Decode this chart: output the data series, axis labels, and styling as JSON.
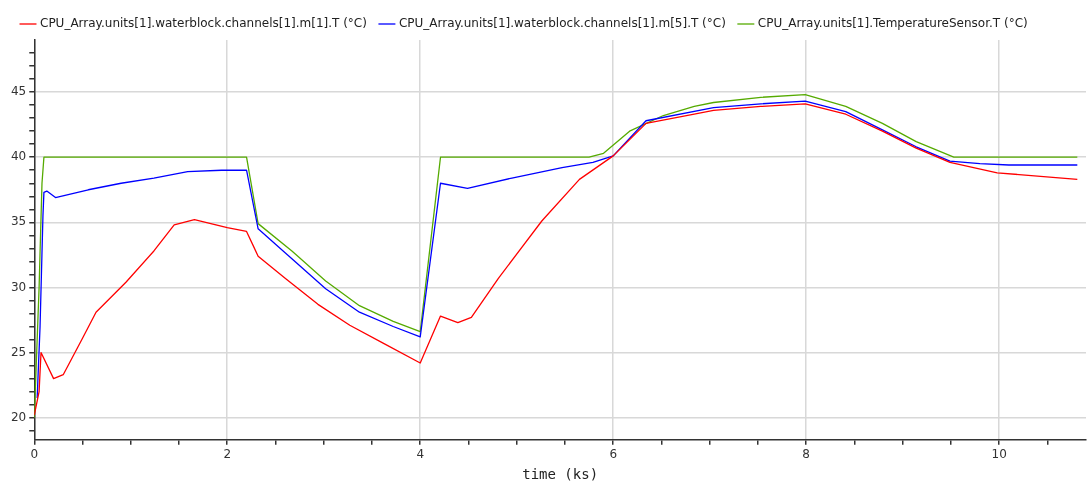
{
  "chart_data": {
    "type": "line",
    "xlabel": "time (ks)",
    "legend": "top left",
    "grid": true,
    "marker": "none",
    "line_style": "solid",
    "xlim": [
      0,
      10.9
    ],
    "ylim": [
      18.3,
      49
    ],
    "xticks": [
      0,
      {
        "value": 0.5,
        "label": null
      },
      {
        "value": 1,
        "label": null
      },
      {
        "value": 1.5,
        "label": null
      },
      2,
      {
        "value": 2.5,
        "label": null
      },
      {
        "value": 3,
        "label": null
      },
      {
        "value": 3.5,
        "label": null
      },
      4,
      {
        "value": 4.5,
        "label": null
      },
      {
        "value": 5,
        "label": null
      },
      {
        "value": 5.5,
        "label": null
      },
      6,
      {
        "value": 6.5,
        "label": null
      },
      {
        "value": 7,
        "label": null
      },
      {
        "value": 7.5,
        "label": null
      },
      8,
      {
        "value": 8.5,
        "label": null
      },
      {
        "value": 9,
        "label": null
      },
      {
        "value": 9.5,
        "label": null
      },
      10,
      {
        "value": 10.5,
        "label": null
      }
    ],
    "yticks": [
      {
        "value": 19,
        "label": null
      },
      20,
      {
        "value": 21,
        "label": null
      },
      {
        "value": 22,
        "label": null
      },
      {
        "value": 23,
        "label": null
      },
      {
        "value": 24,
        "label": null
      },
      25,
      {
        "value": 26,
        "label": null
      },
      {
        "value": 27,
        "label": null
      },
      {
        "value": 28,
        "label": null
      },
      {
        "value": 29,
        "label": null
      },
      30,
      {
        "value": 31,
        "label": null
      },
      {
        "value": 32,
        "label": null
      },
      {
        "value": 33,
        "label": null
      },
      {
        "value": 34,
        "label": null
      },
      35,
      {
        "value": 36,
        "label": null
      },
      {
        "value": 37,
        "label": null
      },
      {
        "value": 38,
        "label": null
      },
      {
        "value": 39,
        "label": null
      },
      40,
      {
        "value": 41,
        "label": null
      },
      {
        "value": 42,
        "label": null
      },
      {
        "value": 43,
        "label": null
      },
      {
        "value": 44,
        "label": null
      },
      45,
      {
        "value": 46,
        "label": null
      },
      {
        "value": 47,
        "label": null
      },
      {
        "value": 48,
        "label": null
      }
    ],
    "series": [
      {
        "name": "CPU_Array.units[1].waterblock.channels[1].m[1].T (°C)",
        "color": "#ff0000",
        "x": [
          0,
          0.05,
          0.07,
          0.2,
          0.3,
          0.5,
          0.64,
          0.95,
          1.24,
          1.45,
          1.66,
          2.0,
          2.2,
          2.32,
          2.6,
          2.94,
          3.27,
          3.62,
          4.0,
          4.21,
          4.39,
          4.53,
          4.81,
          5.26,
          5.65,
          6.0,
          6.34,
          6.84,
          7.04,
          7.53,
          7.99,
          8.41,
          8.79,
          9.14,
          9.49,
          9.98,
          10.81
        ],
        "values": [
          20.2,
          22,
          25.0,
          23,
          23.3,
          26.1,
          28.1,
          30.4,
          32.8,
          34.8,
          35.2,
          34.6,
          34.3,
          32.4,
          30.7,
          28.7,
          27.1,
          25.7,
          24.2,
          27.8,
          27.3,
          27.7,
          30.7,
          35.1,
          38.3,
          40.1,
          42.6,
          43.3,
          43.6,
          43.9,
          44.1,
          43.3,
          42.0,
          40.7,
          39.6,
          38.8,
          38.3
        ]
      },
      {
        "name": "CPU_Array.units[1].waterblock.channels[1].m[5].T (°C)",
        "color": "#0000ff",
        "x": [
          0.03,
          0.06,
          0.09,
          0.1,
          0.13,
          0.22,
          0.56,
          0.9,
          1.24,
          1.59,
          1.94,
          2.2,
          2.32,
          2.67,
          3.02,
          3.37,
          3.72,
          4.0,
          4.21,
          4.49,
          4.95,
          5.47,
          5.79,
          6.0,
          6.34,
          7.04,
          7.53,
          7.99,
          8.41,
          8.79,
          9.14,
          9.49,
          9.8,
          10.1,
          10.81
        ],
        "values": [
          21.5,
          27,
          35.5,
          37.3,
          37.4,
          36.9,
          37.5,
          38.0,
          38.4,
          38.9,
          39.0,
          39.0,
          34.5,
          32.2,
          29.9,
          28.1,
          27.0,
          26.2,
          38.0,
          37.6,
          38.4,
          39.2,
          39.6,
          40.1,
          42.8,
          43.8,
          44.1,
          44.3,
          43.5,
          42.1,
          40.8,
          39.7,
          39.5,
          39.4,
          39.4
        ]
      },
      {
        "name": "CPU_Array.units[1].TemperatureSensor.T (°C)",
        "color": "#55aa00",
        "x": [
          0,
          0.05,
          0.08,
          0.1,
          2.2,
          2.32,
          2.67,
          3.02,
          3.37,
          3.72,
          4.0,
          4.21,
          5.75,
          5.9,
          6.17,
          6.52,
          6.84,
          7.04,
          7.53,
          7.99,
          8.41,
          8.79,
          9.14,
          9.53,
          10.81
        ],
        "values": [
          20,
          30,
          38,
          40,
          40,
          34.9,
          32.8,
          30.5,
          28.6,
          27.4,
          26.6,
          40,
          40.0,
          40.3,
          42.0,
          43.2,
          43.9,
          44.2,
          44.6,
          44.8,
          43.9,
          42.6,
          41.2,
          40.0,
          40.0
        ]
      }
    ]
  }
}
